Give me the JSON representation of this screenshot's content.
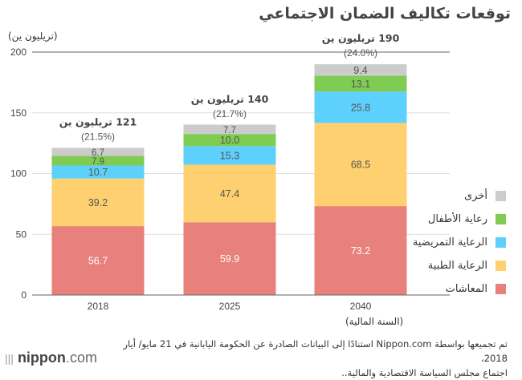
{
  "chart_data": {
    "type": "bar",
    "stacked": true,
    "title": "توقعات تكاليف الضمان الاجتماعي",
    "ylabel": "(تريليون ين)",
    "xlabel": "(السنة المالية)",
    "ylim": [
      0,
      200
    ],
    "yticks": [
      0,
      50,
      100,
      150,
      200
    ],
    "categories": [
      "2018",
      "2025",
      "2040"
    ],
    "series": [
      {
        "name": "المعاشات",
        "color": "#e8807b",
        "label_color": "#ffffff",
        "values": [
          56.7,
          59.9,
          73.2
        ]
      },
      {
        "name": "الرعاية الطبية",
        "color": "#fed06f",
        "label_color": "#555555",
        "values": [
          39.2,
          47.4,
          68.5
        ]
      },
      {
        "name": "الرعاية التمريضية",
        "color": "#5dd0fb",
        "label_color": "#555555",
        "values": [
          10.7,
          15.3,
          25.8
        ]
      },
      {
        "name": "رعاية الأطفال",
        "color": "#80cb52",
        "label_color": "#555555",
        "values": [
          7.9,
          10.0,
          13.1
        ]
      },
      {
        "name": "أخرى",
        "color": "#cccccc",
        "label_color": "#555555",
        "values": [
          6.7,
          7.7,
          9.4
        ]
      }
    ],
    "totals": [
      {
        "value": "121 تريليون ين",
        "pct": "(21.5%)",
        "total": 121
      },
      {
        "value": "140 تريليون ين",
        "pct": "(21.7%)",
        "total": 140
      },
      {
        "value": "190 تريليون ين",
        "pct": "(24.0%)",
        "total": 190
      }
    ],
    "legend_position": "right",
    "grid": true
  },
  "source_line1": "تم تجميعها بواسطة Nippon.com استنادًا إلى البيانات الصادرة عن الحكومة اليابانية في 21 مايو/ أيار 2018،",
  "source_line2": "اجتماع مجلس السياسة الاقتصادية والمالية..",
  "logo": {
    "name": "nippon",
    "dot": ".",
    "tld": "com"
  }
}
